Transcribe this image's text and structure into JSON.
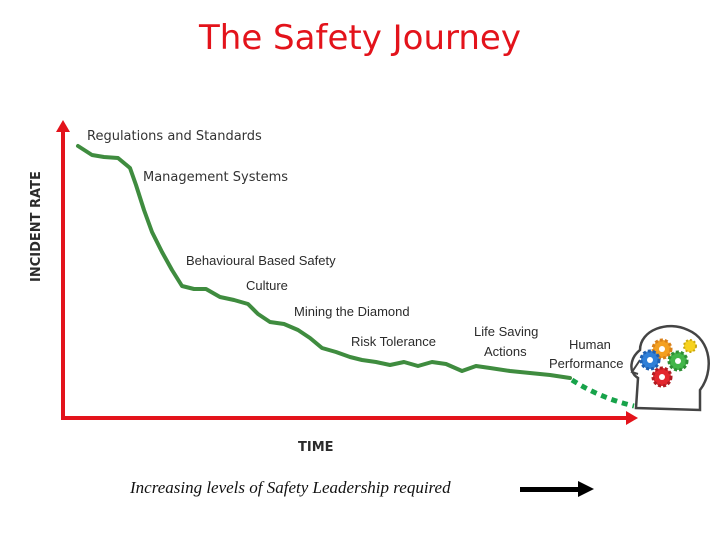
{
  "title": "The Safety Journey",
  "axes": {
    "y_label": "INCIDENT RATE",
    "x_label": "TIME"
  },
  "stages": [
    "Regulations and Standards",
    "Management Systems",
    "Behavioural Based Safety",
    "Culture",
    "Mining the Diamond",
    "Risk Tolerance",
    "Life Saving",
    "Actions",
    "Human",
    "Performance"
  ],
  "footer": {
    "text": "Increasing levels of Safety Leadership required"
  },
  "colors": {
    "title": "#e3131b",
    "axis": "#e3131b",
    "curve": "#3f8c3f",
    "curve_future": "#17a34a"
  },
  "icons": {
    "illustration": "head-with-gears-icon",
    "arrow": "right-arrow-icon"
  }
}
